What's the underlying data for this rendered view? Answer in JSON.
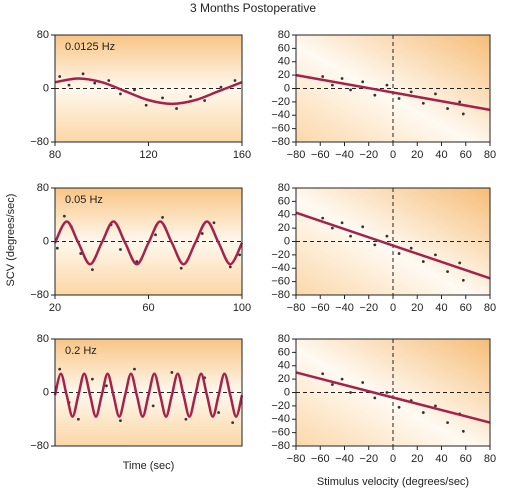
{
  "title": "3 Months Postoperative",
  "ylabel": "SCV (degrees/sec)",
  "chart_data": [
    {
      "type": "scatter",
      "annotation": "0.0125 Hz",
      "xlim": [
        80,
        160
      ],
      "ylim": [
        -80,
        80
      ],
      "xticks": [
        80,
        120,
        160
      ],
      "yticks": [
        80,
        0,
        {
          "value": -80,
          "label": "−80"
        }
      ],
      "hline": 0,
      "panel": "time",
      "series": [
        {
          "type": "scatter",
          "color": "#333333",
          "x": [
            82,
            86,
            92,
            97,
            103,
            108,
            114,
            119,
            126,
            132,
            138,
            144,
            151,
            157
          ],
          "values": [
            18,
            5,
            22,
            8,
            12,
            -8,
            -2,
            -25,
            -14,
            -30,
            -12,
            -18,
            2,
            12
          ]
        },
        {
          "type": "line",
          "color": "#a3234a",
          "x": [
            80,
            90,
            100,
            110,
            120,
            130,
            140,
            150,
            160
          ],
          "values": [
            9.4,
            15,
            9.4,
            -4,
            -17.4,
            -23,
            -17.4,
            -4,
            9.4
          ]
        }
      ]
    },
    {
      "type": "scatter",
      "xlim": [
        -80,
        80
      ],
      "ylim": [
        -80,
        80
      ],
      "xticks": [
        {
          "value": -80,
          "label": "−80"
        },
        {
          "value": -60,
          "label": "−60"
        },
        {
          "value": -40,
          "label": "−40"
        },
        {
          "value": -20,
          "label": "−20"
        },
        0,
        20,
        40,
        60,
        80
      ],
      "yticks": [
        80,
        60,
        40,
        20,
        0,
        {
          "value": -20,
          "label": "−20"
        },
        {
          "value": -40,
          "label": "−40"
        },
        {
          "value": -60,
          "label": "−60"
        },
        {
          "value": -80,
          "label": "−80"
        }
      ],
      "hline": 0,
      "vline": 0,
      "panel": "velocity",
      "series": [
        {
          "type": "scatter",
          "color": "#333333",
          "x": [
            -58,
            -50,
            -42,
            -35,
            -25,
            -15,
            -5,
            5,
            15,
            25,
            35,
            45,
            55,
            58
          ],
          "values": [
            18,
            5,
            15,
            -2,
            10,
            -10,
            5,
            -15,
            -5,
            -22,
            -8,
            -30,
            -20,
            -38
          ]
        },
        {
          "type": "line",
          "color": "#a3234a",
          "x": [
            -80,
            80
          ],
          "values": [
            20,
            -32
          ]
        }
      ]
    },
    {
      "type": "scatter",
      "annotation": "0.05 Hz",
      "xlim": [
        20,
        100
      ],
      "ylim": [
        -80,
        80
      ],
      "xticks": [
        20,
        60,
        100
      ],
      "yticks": [
        80,
        0,
        {
          "value": -80,
          "label": "−80"
        }
      ],
      "hline": 0,
      "panel": "time",
      "series": [
        {
          "type": "scatter",
          "color": "#333333",
          "x": [
            21,
            24,
            27,
            31,
            36,
            44,
            48,
            55,
            63,
            66,
            74,
            83,
            88,
            95,
            99
          ],
          "values": [
            -10,
            38,
            22,
            -18,
            -42,
            25,
            -12,
            -30,
            10,
            36,
            -40,
            12,
            28,
            -38,
            -20
          ]
        },
        {
          "type": "line",
          "color": "#a3234a",
          "x": [
            20,
            25,
            30,
            35,
            40,
            45,
            50,
            55,
            60,
            65,
            70,
            75,
            80,
            85,
            90,
            95,
            100
          ],
          "values": [
            -2,
            30,
            -2,
            -34,
            -2,
            30,
            -2,
            -34,
            -2,
            30,
            -2,
            -34,
            -2,
            30,
            -2,
            -34,
            -2
          ]
        }
      ]
    },
    {
      "type": "scatter",
      "xlim": [
        -80,
        80
      ],
      "ylim": [
        -80,
        80
      ],
      "xticks": [
        {
          "value": -80,
          "label": "−80"
        },
        {
          "value": -60,
          "label": "−60"
        },
        {
          "value": -40,
          "label": "−40"
        },
        {
          "value": -20,
          "label": "−20"
        },
        0,
        20,
        40,
        60,
        80
      ],
      "yticks": [
        80,
        60,
        40,
        20,
        0,
        {
          "value": -20,
          "label": "−20"
        },
        {
          "value": -40,
          "label": "−40"
        },
        {
          "value": -60,
          "label": "−60"
        },
        {
          "value": -80,
          "label": "−80"
        }
      ],
      "hline": 0,
      "vline": 0,
      "panel": "velocity",
      "series": [
        {
          "type": "scatter",
          "color": "#333333",
          "x": [
            -58,
            -50,
            -42,
            -35,
            -25,
            -15,
            -5,
            5,
            15,
            25,
            35,
            45,
            55,
            58
          ],
          "values": [
            35,
            20,
            28,
            8,
            22,
            -5,
            8,
            -18,
            -10,
            -30,
            -20,
            -45,
            -32,
            -58
          ]
        },
        {
          "type": "line",
          "color": "#a3234a",
          "x": [
            -80,
            80
          ],
          "values": [
            43,
            -55
          ]
        }
      ]
    },
    {
      "type": "scatter",
      "annotation": "0.2 Hz",
      "xlim": [
        20,
        60
      ],
      "ylim": [
        -80,
        80
      ],
      "yticks": [
        80,
        0,
        {
          "value": -80,
          "label": "−80"
        }
      ],
      "hline": 0,
      "panel": "time",
      "xlabel": "Time (sec)",
      "series": [
        {
          "type": "scatter",
          "color": "#333333",
          "x": [
            21,
            23,
            25,
            28,
            31,
            34,
            37,
            41,
            45,
            48,
            52,
            55,
            58
          ],
          "values": [
            35,
            -15,
            -40,
            20,
            10,
            -42,
            35,
            -20,
            30,
            -40,
            22,
            -30,
            -45
          ]
        },
        {
          "type": "line",
          "color": "#a3234a",
          "x": [
            20,
            21.25,
            22.5,
            23.75,
            25,
            26.25,
            27.5,
            28.75,
            30,
            31.25,
            32.5,
            33.75,
            35,
            36.25,
            37.5,
            38.75,
            40,
            41.25,
            42.5,
            43.75,
            45,
            46.25,
            47.5,
            48.75,
            50,
            51.25,
            52.5,
            53.75,
            55,
            56.25,
            57.5,
            58.75,
            60
          ],
          "values": [
            -4,
            28,
            -4,
            -36,
            -4,
            28,
            -4,
            -36,
            -4,
            28,
            -4,
            -36,
            -4,
            28,
            -4,
            -36,
            -4,
            28,
            -4,
            -36,
            -4,
            28,
            -4,
            -36,
            -4,
            28,
            -4,
            -36,
            -4,
            28,
            -4,
            -36,
            -4
          ]
        }
      ]
    },
    {
      "type": "scatter",
      "xlim": [
        -80,
        80
      ],
      "ylim": [
        -80,
        80
      ],
      "xlabel": "Stimulus velocity (degrees/sec)",
      "xticks": [
        {
          "value": -80,
          "label": "−80"
        },
        {
          "value": -60,
          "label": "−60"
        },
        {
          "value": -40,
          "label": "−40"
        },
        {
          "value": -20,
          "label": "−20"
        },
        0,
        20,
        40,
        60,
        80
      ],
      "yticks": [
        80,
        60,
        40,
        20,
        0,
        {
          "value": -20,
          "label": "−20"
        },
        {
          "value": -40,
          "label": "−40"
        },
        {
          "value": -60,
          "label": "−60"
        },
        {
          "value": -80,
          "label": "−80"
        }
      ],
      "hline": 0,
      "vline": 0,
      "panel": "velocity",
      "series": [
        {
          "type": "scatter",
          "color": "#333333",
          "x": [
            -58,
            -50,
            -42,
            -35,
            -25,
            -15,
            -5,
            5,
            15,
            25,
            35,
            45,
            55,
            58
          ],
          "values": [
            28,
            12,
            20,
            0,
            15,
            -8,
            0,
            -22,
            -12,
            -30,
            -20,
            -45,
            -32,
            -58
          ]
        },
        {
          "type": "line",
          "color": "#a3234a",
          "x": [
            -80,
            80
          ],
          "values": [
            30,
            -45
          ]
        }
      ]
    }
  ]
}
